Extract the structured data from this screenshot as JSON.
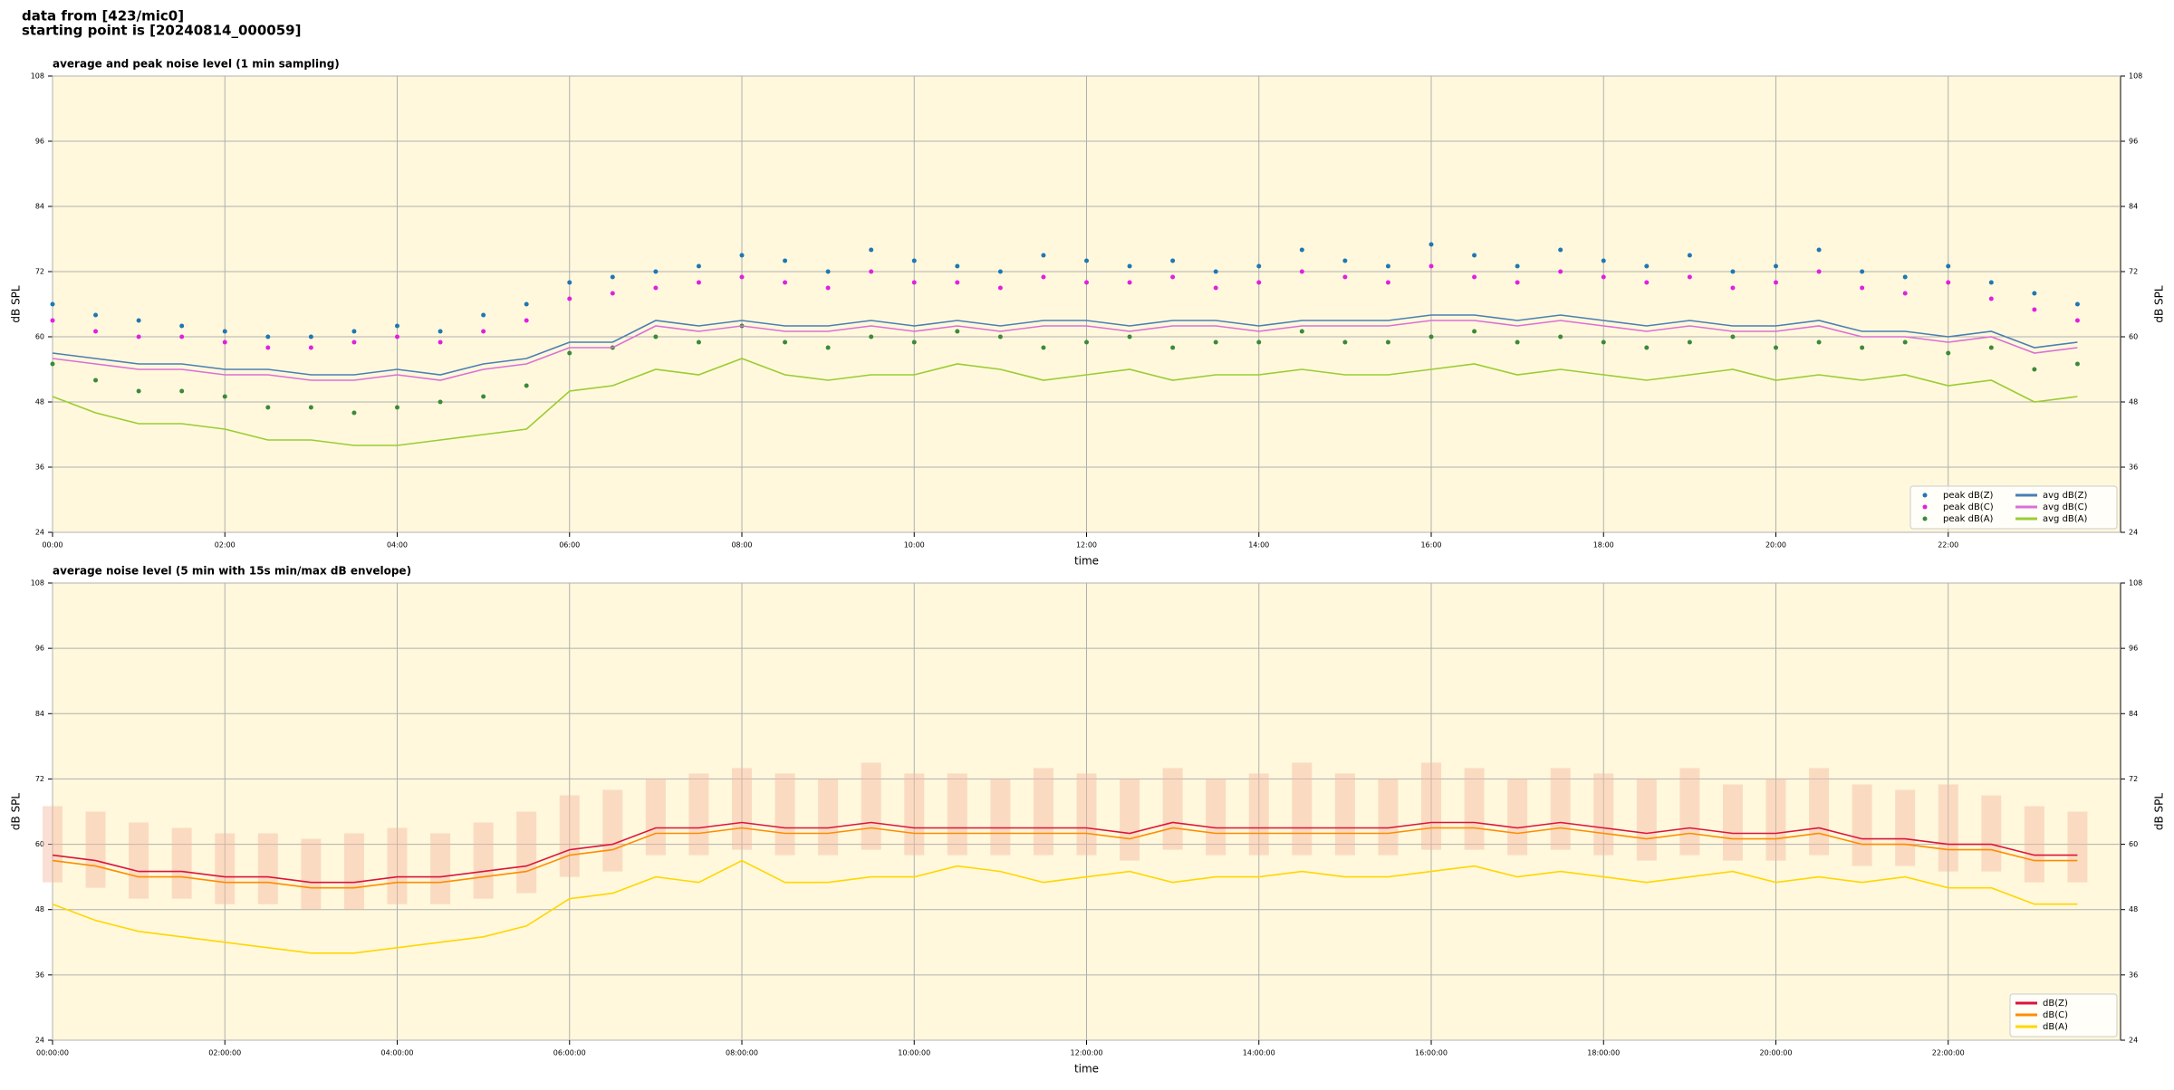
{
  "header": {
    "source": "data from [423/mic0]",
    "start": "starting point is [20240814_000059]"
  },
  "chart_data": [
    {
      "type": "line",
      "title": "average and peak noise level (1 min sampling)",
      "x_label": "time",
      "y_label": "dB SPL",
      "xlim": [
        0,
        24
      ],
      "ylim": [
        24,
        108
      ],
      "yticks": [
        24,
        36,
        48,
        60,
        72,
        84,
        96,
        108
      ],
      "xticks": [
        {
          "value": 0,
          "label": "00:00"
        },
        {
          "value": 2,
          "label": "02:00"
        },
        {
          "value": 4,
          "label": "04:00"
        },
        {
          "value": 6,
          "label": "06:00"
        },
        {
          "value": 8,
          "label": "08:00"
        },
        {
          "value": 10,
          "label": "10:00"
        },
        {
          "value": 12,
          "label": "12:00"
        },
        {
          "value": 14,
          "label": "14:00"
        },
        {
          "value": 16,
          "label": "16:00"
        },
        {
          "value": 18,
          "label": "18:00"
        },
        {
          "value": 20,
          "label": "20:00"
        },
        {
          "value": 22,
          "label": "22:00"
        }
      ],
      "grid": true,
      "legend": "lower right",
      "legend_columns": 2,
      "x": [
        0,
        0.5,
        1,
        1.5,
        2,
        2.5,
        3,
        3.5,
        4,
        4.5,
        5,
        5.5,
        6,
        6.5,
        7,
        7.5,
        8,
        8.5,
        9,
        9.5,
        10,
        10.5,
        11,
        11.5,
        12,
        12.5,
        13,
        13.5,
        14,
        14.5,
        15,
        15.5,
        16,
        16.5,
        17,
        17.5,
        18,
        18.5,
        19,
        19.5,
        20,
        20.5,
        21,
        21.5,
        22,
        22.5,
        23,
        23.5
      ],
      "series": [
        {
          "name": "peak dB(Z)",
          "color": "#1f77b4",
          "marker": "dot",
          "values": [
            66,
            64,
            63,
            62,
            61,
            60,
            60,
            61,
            62,
            61,
            64,
            66,
            70,
            71,
            72,
            73,
            75,
            74,
            72,
            76,
            74,
            73,
            72,
            75,
            74,
            73,
            74,
            72,
            73,
            76,
            74,
            73,
            77,
            75,
            73,
            76,
            74,
            73,
            75,
            72,
            73,
            76,
            72,
            71,
            73,
            70,
            68,
            66
          ]
        },
        {
          "name": "peak dB(C)",
          "color": "#e020e0",
          "marker": "dot",
          "values": [
            63,
            61,
            60,
            60,
            59,
            58,
            58,
            59,
            60,
            59,
            61,
            63,
            67,
            68,
            69,
            70,
            71,
            70,
            69,
            72,
            70,
            70,
            69,
            71,
            70,
            70,
            71,
            69,
            70,
            72,
            71,
            70,
            73,
            71,
            70,
            72,
            71,
            70,
            71,
            69,
            70,
            72,
            69,
            68,
            70,
            67,
            65,
            63
          ]
        },
        {
          "name": "peak dB(A)",
          "color": "#3a8a3a",
          "marker": "dot",
          "values": [
            55,
            52,
            50,
            50,
            49,
            47,
            47,
            46,
            47,
            48,
            49,
            51,
            57,
            58,
            60,
            59,
            62,
            59,
            58,
            60,
            59,
            61,
            60,
            58,
            59,
            60,
            58,
            59,
            59,
            61,
            59,
            59,
            60,
            61,
            59,
            60,
            59,
            58,
            59,
            60,
            58,
            59,
            58,
            59,
            57,
            58,
            54,
            55
          ]
        },
        {
          "name": "avg dB(Z)",
          "color": "#4a7fb5",
          "values": [
            57,
            56,
            55,
            55,
            54,
            54,
            53,
            53,
            54,
            53,
            55,
            56,
            59,
            59,
            63,
            62,
            63,
            62,
            62,
            63,
            62,
            63,
            62,
            63,
            63,
            62,
            63,
            63,
            62,
            63,
            63,
            63,
            64,
            64,
            63,
            64,
            63,
            62,
            63,
            62,
            62,
            63,
            61,
            61,
            60,
            61,
            58,
            59
          ]
        },
        {
          "name": "avg dB(C)",
          "color": "#da70d6",
          "values": [
            56,
            55,
            54,
            54,
            53,
            53,
            52,
            52,
            53,
            52,
            54,
            55,
            58,
            58,
            62,
            61,
            62,
            61,
            61,
            62,
            61,
            62,
            61,
            62,
            62,
            61,
            62,
            62,
            61,
            62,
            62,
            62,
            63,
            63,
            62,
            63,
            62,
            61,
            62,
            61,
            61,
            62,
            60,
            60,
            59,
            60,
            57,
            58
          ]
        },
        {
          "name": "avg dB(A)",
          "color": "#9acd32",
          "values": [
            49,
            46,
            44,
            44,
            43,
            41,
            41,
            40,
            40,
            41,
            42,
            43,
            50,
            51,
            54,
            53,
            56,
            53,
            52,
            53,
            53,
            55,
            54,
            52,
            53,
            54,
            52,
            53,
            53,
            54,
            53,
            53,
            54,
            55,
            53,
            54,
            53,
            52,
            53,
            54,
            52,
            53,
            52,
            53,
            51,
            52,
            48,
            49
          ]
        }
      ]
    },
    {
      "type": "line",
      "title": "average noise level (5 min with 15s min/max dB envelope)",
      "x_label": "time",
      "y_label": "dB SPL",
      "xlim": [
        0,
        24
      ],
      "ylim": [
        24,
        108
      ],
      "yticks": [
        24,
        36,
        48,
        60,
        72,
        84,
        96,
        108
      ],
      "xticks": [
        {
          "value": 0,
          "label": "00:00:00"
        },
        {
          "value": 2,
          "label": "02:00:00"
        },
        {
          "value": 4,
          "label": "04:00:00"
        },
        {
          "value": 6,
          "label": "06:00:00"
        },
        {
          "value": 8,
          "label": "08:00:00"
        },
        {
          "value": 10,
          "label": "10:00:00"
        },
        {
          "value": 12,
          "label": "12:00:00"
        },
        {
          "value": 14,
          "label": "14:00:00"
        },
        {
          "value": 16,
          "label": "16:00:00"
        },
        {
          "value": 18,
          "label": "18:00:00"
        },
        {
          "value": 20,
          "label": "20:00:00"
        },
        {
          "value": 22,
          "label": "22:00:00"
        }
      ],
      "grid": true,
      "legend": "lower right",
      "legend_columns": 1,
      "x": [
        0,
        0.5,
        1,
        1.5,
        2,
        2.5,
        3,
        3.5,
        4,
        4.5,
        5,
        5.5,
        6,
        6.5,
        7,
        7.5,
        8,
        8.5,
        9,
        9.5,
        10,
        10.5,
        11,
        11.5,
        12,
        12.5,
        13,
        13.5,
        14,
        14.5,
        15,
        15.5,
        16,
        16.5,
        17,
        17.5,
        18,
        18.5,
        19,
        19.5,
        20,
        20.5,
        21,
        21.5,
        22,
        22.5,
        23,
        23.5
      ],
      "envelope": {
        "color": "#f4b8a0",
        "lower": [
          53,
          52,
          50,
          50,
          49,
          49,
          48,
          48,
          49,
          49,
          50,
          51,
          54,
          55,
          58,
          58,
          59,
          58,
          58,
          59,
          58,
          58,
          58,
          58,
          58,
          57,
          59,
          58,
          58,
          58,
          58,
          58,
          59,
          59,
          58,
          59,
          58,
          57,
          58,
          57,
          57,
          58,
          56,
          56,
          55,
          55,
          53,
          53
        ],
        "upper": [
          67,
          66,
          64,
          63,
          62,
          62,
          61,
          62,
          63,
          62,
          64,
          66,
          69,
          70,
          72,
          73,
          74,
          73,
          72,
          75,
          73,
          73,
          72,
          74,
          73,
          72,
          74,
          72,
          73,
          75,
          73,
          72,
          75,
          74,
          72,
          74,
          73,
          72,
          74,
          71,
          72,
          74,
          71,
          70,
          71,
          69,
          67,
          66
        ]
      },
      "series": [
        {
          "name": "dB(Z)",
          "color": "#dc143c",
          "values": [
            58,
            57,
            55,
            55,
            54,
            54,
            53,
            53,
            54,
            54,
            55,
            56,
            59,
            60,
            63,
            63,
            64,
            63,
            63,
            64,
            63,
            63,
            63,
            63,
            63,
            62,
            64,
            63,
            63,
            63,
            63,
            63,
            64,
            64,
            63,
            64,
            63,
            62,
            63,
            62,
            62,
            63,
            61,
            61,
            60,
            60,
            58,
            58
          ]
        },
        {
          "name": "dB(C)",
          "color": "#ff8c00",
          "values": [
            57,
            56,
            54,
            54,
            53,
            53,
            52,
            52,
            53,
            53,
            54,
            55,
            58,
            59,
            62,
            62,
            63,
            62,
            62,
            63,
            62,
            62,
            62,
            62,
            62,
            61,
            63,
            62,
            62,
            62,
            62,
            62,
            63,
            63,
            62,
            63,
            62,
            61,
            62,
            61,
            61,
            62,
            60,
            60,
            59,
            59,
            57,
            57
          ]
        },
        {
          "name": "dB(A)",
          "color": "#ffd700",
          "values": [
            49,
            46,
            44,
            43,
            42,
            41,
            40,
            40,
            41,
            42,
            43,
            45,
            50,
            51,
            54,
            53,
            57,
            53,
            53,
            54,
            54,
            56,
            55,
            53,
            54,
            55,
            53,
            54,
            54,
            55,
            54,
            54,
            55,
            56,
            54,
            55,
            54,
            53,
            54,
            55,
            53,
            54,
            53,
            54,
            52,
            52,
            49,
            49
          ]
        }
      ]
    }
  ]
}
